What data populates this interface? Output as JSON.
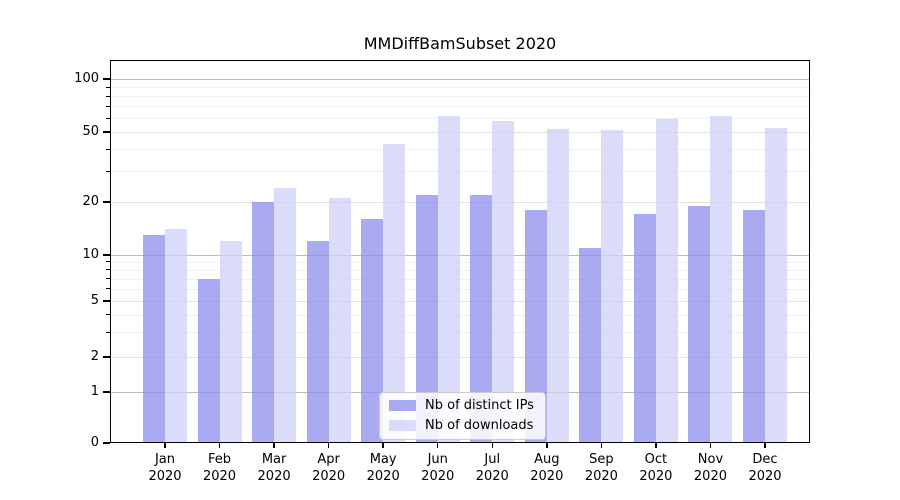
{
  "chart_data": {
    "type": "bar",
    "title": "MMDiffBamSubset 2020",
    "categories": [
      "Jan",
      "Feb",
      "Mar",
      "Apr",
      "May",
      "Jun",
      "Jul",
      "Aug",
      "Sep",
      "Oct",
      "Nov",
      "Dec"
    ],
    "x_year_label": "2020",
    "series": [
      {
        "name": "Nb of distinct IPs",
        "color": "rgba(137,137,237,0.72)",
        "values": [
          13,
          7,
          20,
          12,
          16,
          22,
          22,
          18,
          11,
          17,
          19,
          18
        ]
      },
      {
        "name": "Nb of downloads",
        "color": "rgba(205,205,248,0.72)",
        "values": [
          14,
          12,
          24,
          21,
          43,
          62,
          58,
          52,
          51,
          59,
          62,
          53
        ]
      }
    ],
    "y_axis": {
      "scale": "log-with-zero-baseline",
      "ticks": [
        0,
        1,
        2,
        5,
        10,
        20,
        50,
        100
      ],
      "minor_ticks": [
        3,
        4,
        6,
        7,
        8,
        9,
        30,
        40,
        60,
        70,
        80,
        90
      ],
      "range": [
        0,
        130
      ]
    },
    "xlabel": "",
    "ylabel": "",
    "grid": true,
    "legend_position": "lower center"
  }
}
